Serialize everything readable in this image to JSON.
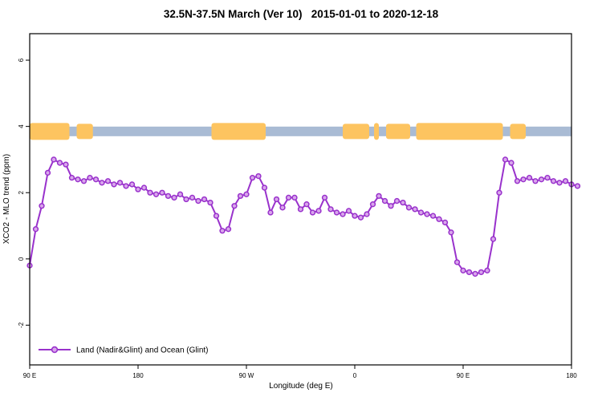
{
  "title": "32.5N-37.5N March (Ver 10)   2015-01-01 to 2020-12-18",
  "legend": {
    "label": "Land (Nadir&Glint) and Ocean (Glint)"
  },
  "chart_data": {
    "type": "line",
    "title": "32.5N-37.5N March (Ver 10)   2015-01-01 to 2020-12-18",
    "xlabel": "Longitude (deg E)",
    "ylabel": "XCO2 - MLO trend (ppm)",
    "xlim": [
      90,
      540
    ],
    "ylim": [
      -3.2,
      6.8
    ],
    "x_ticks": [
      90,
      180,
      270,
      360,
      450,
      540
    ],
    "x_tick_labels": [
      "90 E",
      "180",
      "90 W",
      "0",
      "90 E",
      "180"
    ],
    "y_ticks": [
      -2,
      0,
      2,
      4,
      6
    ],
    "y_tick_labels": [
      "-2",
      "0",
      "2",
      "4",
      "6"
    ],
    "grid": false,
    "legend_position": "bottom-left",
    "x_start": 90,
    "x_step": 5,
    "series": [
      {
        "name": "Land (Nadir&Glint) and Ocean (Glint)",
        "color": "#9932CC",
        "marker": "circle",
        "marker_fill": "#d9a6ec",
        "values": [
          -0.2,
          0.9,
          1.6,
          2.6,
          3.0,
          2.9,
          2.85,
          2.45,
          2.4,
          2.35,
          2.45,
          2.4,
          2.3,
          2.35,
          2.25,
          2.3,
          2.2,
          2.25,
          2.1,
          2.15,
          2.0,
          1.95,
          2.0,
          1.9,
          1.85,
          1.95,
          1.8,
          1.85,
          1.75,
          1.8,
          1.7,
          1.3,
          0.85,
          0.9,
          1.6,
          1.9,
          1.95,
          2.45,
          2.5,
          2.15,
          1.4,
          1.8,
          1.55,
          1.85,
          1.85,
          1.5,
          1.65,
          1.4,
          1.45,
          1.85,
          1.5,
          1.4,
          1.35,
          1.45,
          1.3,
          1.25,
          1.35,
          1.65,
          1.9,
          1.75,
          1.6,
          1.75,
          1.7,
          1.55,
          1.5,
          1.4,
          1.35,
          1.3,
          1.2,
          1.1,
          0.8,
          -0.1,
          -0.35,
          -0.4,
          -0.45,
          -0.4,
          -0.35,
          0.6,
          2.0,
          3.0,
          2.9,
          2.35,
          2.4,
          2.45,
          2.35,
          2.4,
          2.45,
          2.35,
          2.3,
          2.35,
          2.25,
          2.2
        ]
      }
    ],
    "map_strip": {
      "description": "land-ocean strip along latitude band at y about 3.85 ppm",
      "ocean_color": "#a9bbd4",
      "land_color": "#fdc460",
      "y_center_ppm": 3.85,
      "land_segments_lon": [
        [
          90,
          123
        ],
        [
          129,
          142.5
        ],
        [
          241,
          286
        ],
        [
          350,
          372
        ],
        [
          376,
          380
        ],
        [
          386,
          406
        ],
        [
          411,
          483
        ],
        [
          489,
          502
        ]
      ]
    }
  }
}
